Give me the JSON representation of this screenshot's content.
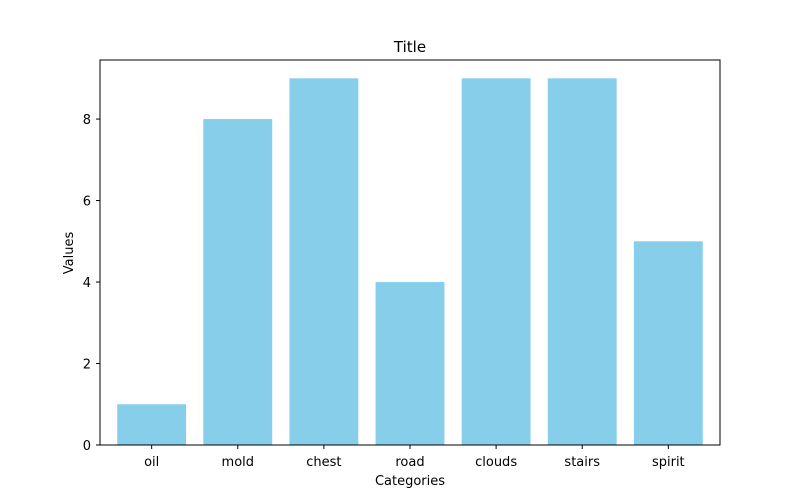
{
  "chart_data": {
    "type": "bar",
    "title": "Title",
    "xlabel": "Categories",
    "ylabel": "Values",
    "categories": [
      "oil",
      "mold",
      "chest",
      "road",
      "clouds",
      "stairs",
      "spirit"
    ],
    "values": [
      1,
      8,
      9,
      4,
      9,
      9,
      5
    ],
    "ylim": [
      0,
      9.45
    ],
    "yticks": [
      0,
      2,
      4,
      6,
      8
    ],
    "bar_color": "#87ceeb",
    "grid": false,
    "legend": "none"
  }
}
